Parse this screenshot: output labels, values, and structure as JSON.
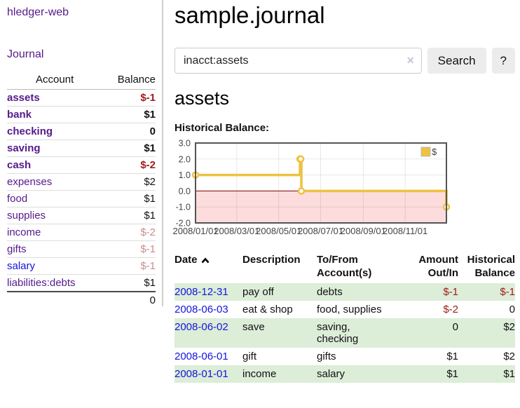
{
  "app": {
    "title": "hledger-web",
    "nav_journal": "Journal"
  },
  "colors": {
    "link_visited": "#551a8b",
    "link_unvisited": "#1414dd",
    "negative_strong": "#a01c1c",
    "negative_faded": "#c98c8c",
    "row_stripe_green": "#dcedd8",
    "chart_series": "#edc240",
    "chart_negative_region": "#fcdcdc",
    "chart_zero_line": "#800000"
  },
  "sidebar": {
    "accounts_header": {
      "account": "Account",
      "balance": "Balance"
    },
    "accounts": [
      {
        "name": "assets",
        "level": 1,
        "bold": true,
        "color": "purple",
        "balance": "$-1",
        "balance_style": "neg-strong"
      },
      {
        "name": "bank",
        "level": 2,
        "bold": true,
        "color": "purple",
        "balance": "$1",
        "balance_style": "pos-strong"
      },
      {
        "name": "checking",
        "level": 3,
        "bold": true,
        "color": "purple",
        "balance": "0",
        "balance_style": "pos-strong"
      },
      {
        "name": "saving",
        "level": 3,
        "bold": true,
        "color": "purple",
        "balance": "$1",
        "balance_style": "pos-strong"
      },
      {
        "name": "cash",
        "level": 2,
        "bold": true,
        "color": "purple",
        "balance": "$-2",
        "balance_style": "neg-strong"
      },
      {
        "name": "expenses",
        "level": 1,
        "bold": false,
        "color": "purple",
        "balance": "$2",
        "balance_style": "pos"
      },
      {
        "name": "food",
        "level": 2,
        "bold": false,
        "color": "purple",
        "balance": "$1",
        "balance_style": "pos"
      },
      {
        "name": "supplies",
        "level": 2,
        "bold": false,
        "color": "purple",
        "balance": "$1",
        "balance_style": "pos"
      },
      {
        "name": "income",
        "level": 1,
        "bold": false,
        "color": "purple",
        "balance": "$-2",
        "balance_style": "neg-faded"
      },
      {
        "name": "gifts",
        "level": 2,
        "bold": false,
        "color": "purple",
        "balance": "$-1",
        "balance_style": "neg-faded"
      },
      {
        "name": "salary",
        "level": 2,
        "bold": false,
        "color": "blue",
        "balance": "$-1",
        "balance_style": "neg-faded"
      },
      {
        "name": "liabilities:debts",
        "level": 1,
        "bold": false,
        "color": "purple",
        "balance": "$1",
        "balance_style": "pos"
      }
    ],
    "total": "0"
  },
  "header": {
    "title": "sample.journal"
  },
  "search": {
    "query": "inacct:assets",
    "clear_icon": "✕",
    "button": "Search",
    "help_button": "?"
  },
  "main": {
    "account_title": "assets",
    "chart_label": "Historical Balance:"
  },
  "chart_data": {
    "type": "line",
    "step": true,
    "title": "Historical Balance",
    "series": [
      {
        "name": "$",
        "color": "#edc240",
        "points": [
          [
            "2008-01-01",
            1.0
          ],
          [
            "2008-06-01",
            2.0
          ],
          [
            "2008-06-02",
            2.0
          ],
          [
            "2008-06-03",
            0.0
          ],
          [
            "2008-12-31",
            -1.0
          ]
        ]
      }
    ],
    "xrange": [
      "2008-01-01",
      "2008-12-31"
    ],
    "ylim": [
      -2.0,
      3.0
    ],
    "yticks": [
      3.0,
      2.0,
      1.0,
      0.0,
      -1.0,
      -2.0
    ],
    "xticks": [
      {
        "date": "2008-01-01",
        "label": "2008/01/01"
      },
      {
        "date": "2008-03-01",
        "label": "2008/03/01"
      },
      {
        "date": "2008-05-01",
        "label": "2008/05/01"
      },
      {
        "date": "2008-07-01",
        "label": "2008/07/01"
      },
      {
        "date": "2008-09-01",
        "label": "2008/09/01"
      },
      {
        "date": "2008-11-01",
        "label": "2008/11/01"
      }
    ],
    "grid": true,
    "legend": {
      "label": "$",
      "position": "top-right"
    },
    "negative_region_shaded": true
  },
  "register": {
    "columns": [
      "Date",
      "Description",
      "To/From Account(s)",
      "Amount Out/In",
      "Historical Balance"
    ],
    "rows": [
      {
        "date": "2008-12-31",
        "description": "pay off",
        "accounts": "debts",
        "amount": "$-1",
        "amount_neg": true,
        "balance": "$-1",
        "balance_neg": true
      },
      {
        "date": "2008-06-03",
        "description": "eat & shop",
        "accounts": "food, supplies",
        "amount": "$-2",
        "amount_neg": true,
        "balance": "0",
        "balance_neg": false
      },
      {
        "date": "2008-06-02",
        "description": "save",
        "accounts": "saving,\nchecking",
        "amount": "0",
        "amount_neg": false,
        "balance": "$2",
        "balance_neg": false
      },
      {
        "date": "2008-06-01",
        "description": "gift",
        "accounts": "gifts",
        "amount": "$1",
        "amount_neg": false,
        "balance": "$2",
        "balance_neg": false
      },
      {
        "date": "2008-01-01",
        "description": "income",
        "accounts": "salary",
        "amount": "$1",
        "amount_neg": false,
        "balance": "$1",
        "balance_neg": false
      }
    ]
  }
}
